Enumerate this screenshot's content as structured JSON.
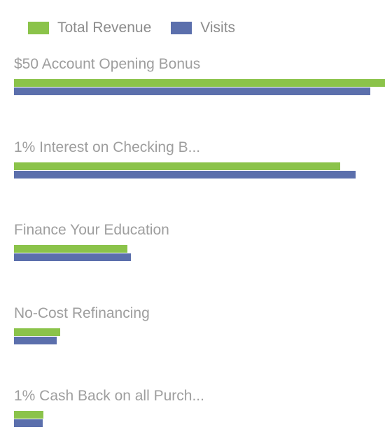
{
  "chart_data": {
    "type": "bar",
    "orientation": "horizontal",
    "categories": [
      "$50 Account Opening Bonus",
      "1% Interest on Checking B...",
      "Finance Your Education",
      "No-Cost Refinancing",
      "1% Cash Back on all Purch..."
    ],
    "series": [
      {
        "name": "Total Revenue",
        "color": "#8bc34a",
        "values": [
          100,
          88,
          30.5,
          12.5,
          8
        ]
      },
      {
        "name": "Visits",
        "color": "#5b6fac",
        "values": [
          96,
          92,
          31.5,
          11.5,
          7.7
        ]
      }
    ],
    "xlim": [
      0,
      100
    ],
    "grid": false,
    "legend_position": "top-left"
  }
}
